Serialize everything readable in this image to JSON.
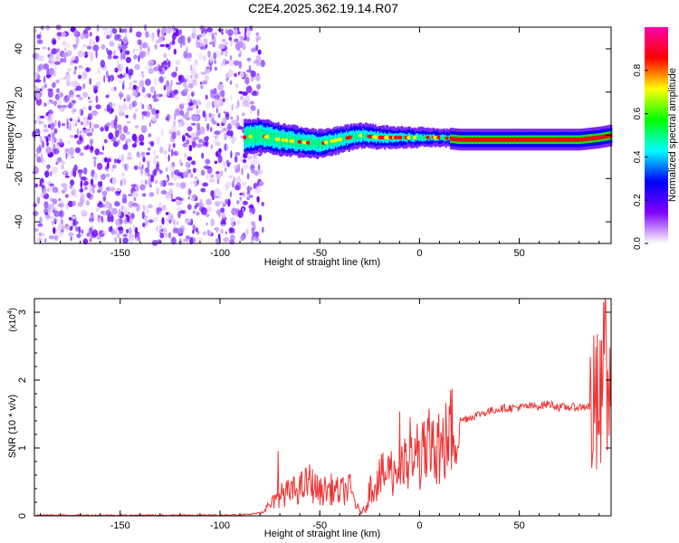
{
  "title": "C2E4.2025.362.19.14.R07",
  "chart_data": [
    {
      "type": "heatmap",
      "panel": "top",
      "xlabel": "Height of straight line (km)",
      "ylabel": "Frequency (Hz)",
      "xlim": [
        -193,
        96
      ],
      "ylim": [
        -50,
        50
      ],
      "xticks": [
        "-150",
        "-100",
        "-50",
        "0",
        "50"
      ],
      "yticks": [
        "-40",
        "-20",
        "0",
        "20",
        "40"
      ],
      "noise_region_x": [
        -193,
        -83
      ],
      "signal_track": {
        "x": [
          -88,
          -80,
          -70,
          -60,
          -50,
          -40,
          -30,
          -20,
          -10,
          0,
          10,
          20,
          50,
          80,
          90,
          96
        ],
        "freq_hz": [
          -1,
          0,
          -2,
          -3,
          -4,
          -2,
          0,
          -1,
          -1,
          -1,
          -1,
          -2,
          -2,
          -2,
          -1,
          0
        ]
      },
      "colorbar": {
        "label": "Normalized spectral amplitude",
        "range": [
          0,
          1
        ],
        "ticks": [
          "0.0",
          "0.2",
          "0.4",
          "0.6",
          "0.8"
        ],
        "colors": [
          "#ffffff",
          "#8000ff",
          "#0000ff",
          "#00ffff",
          "#00ff00",
          "#ffff00",
          "#ff0000",
          "#ff00aa"
        ]
      }
    },
    {
      "type": "line",
      "panel": "bottom",
      "xlabel": "Height of straight line (km)",
      "ylabel": "SNR (10 * v/v)",
      "scale_label": "(x10",
      "scale_exponent": "4",
      "scale_close": ")",
      "xlim": [
        -193,
        96
      ],
      "ylim": [
        0,
        3.2
      ],
      "xticks": [
        "-150",
        "-100",
        "-50",
        "0",
        "50"
      ],
      "yticks": [
        "0",
        "1",
        "2",
        "3"
      ],
      "series": [
        {
          "color": "#ee3333",
          "x": [
            -193,
            -150,
            -100,
            -85,
            -80,
            -75,
            -70,
            -65,
            -60,
            -55,
            -50,
            -45,
            -40,
            -35,
            -30,
            -27,
            -25,
            -20,
            -15,
            -10,
            -5,
            0,
            5,
            10,
            15,
            20,
            30,
            40,
            50,
            60,
            65,
            70,
            80,
            85,
            88,
            90,
            92,
            94,
            96
          ],
          "y": [
            0.01,
            0.01,
            0.01,
            0.02,
            0.05,
            0.15,
            0.3,
            0.35,
            0.4,
            0.5,
            0.35,
            0.4,
            0.35,
            0.4,
            0.05,
            0.1,
            0.4,
            0.55,
            0.65,
            0.7,
            0.75,
            0.85,
            0.95,
            0.9,
            1.2,
            1.4,
            1.5,
            1.58,
            1.6,
            1.62,
            1.65,
            1.6,
            1.6,
            1.62,
            1.5,
            1.6,
            1.4,
            1.8,
            1.6
          ]
        }
      ]
    }
  ]
}
